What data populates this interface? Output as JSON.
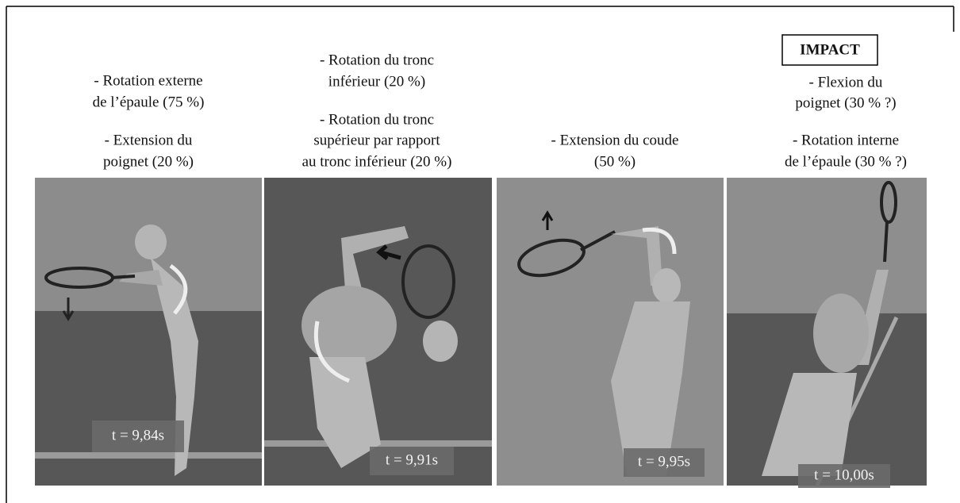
{
  "figure": {
    "impact": "IMPACT",
    "panels": [
      {
        "notes": [
          [
            "- Rotation externe",
            "de l’épaule (75 %)"
          ],
          [
            "- Extension du",
            "poignet (20 %)"
          ]
        ],
        "time": "t = 9,84s"
      },
      {
        "notes": [
          [
            "- Rotation du tronc",
            "inférieur (20 %)"
          ],
          [
            "-   Rotation  du  tronc",
            "supérieur par rapport",
            "au tronc inférieur (20 %)"
          ]
        ],
        "time": "t = 9,91s"
      },
      {
        "notes": [
          [
            "-   Extension du coude",
            "(50 %)"
          ]
        ],
        "time": "t = 9,95s"
      },
      {
        "notes": [
          [
            "-   Flexion du",
            "poignet (30 % ?)"
          ],
          [
            "-   Rotation interne",
            "de l’épaule (30 % ?)"
          ]
        ],
        "time": "t = 10,00s"
      }
    ]
  }
}
